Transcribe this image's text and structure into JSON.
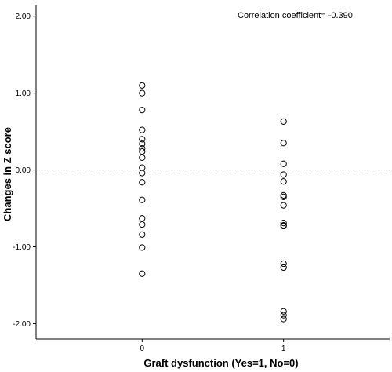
{
  "chart_data": {
    "type": "scatter",
    "xlabel": "Graft dysfunction (Yes=1, No=0)",
    "ylabel": "Changes in Z score",
    "annotation": "Correlation coefficient= -0.390",
    "x_ticks": [
      "0",
      "1"
    ],
    "y_ticks": [
      "2.00",
      "1.00",
      "0.00",
      "-1.00",
      "-2.00"
    ],
    "xlim": [
      -0.75,
      1.75
    ],
    "ylim": [
      -2.2,
      2.15
    ],
    "reference_line_y": 0,
    "marker": "open-circle",
    "series": [
      {
        "points": [
          {
            "x": 0,
            "y": 1.1
          },
          {
            "x": 0,
            "y": 1.0
          },
          {
            "x": 0,
            "y": 0.78
          },
          {
            "x": 0,
            "y": 0.52
          },
          {
            "x": 0,
            "y": 0.4
          },
          {
            "x": 0,
            "y": 0.34
          },
          {
            "x": 0,
            "y": 0.28
          },
          {
            "x": 0,
            "y": 0.24
          },
          {
            "x": 0,
            "y": 0.16
          },
          {
            "x": 0,
            "y": 0.03
          },
          {
            "x": 0,
            "y": -0.04
          },
          {
            "x": 0,
            "y": -0.16
          },
          {
            "x": 0,
            "y": -0.39
          },
          {
            "x": 0,
            "y": -0.63
          },
          {
            "x": 0,
            "y": -0.71
          },
          {
            "x": 0,
            "y": -0.84
          },
          {
            "x": 0,
            "y": -1.01
          },
          {
            "x": 0,
            "y": -1.35
          },
          {
            "x": 1,
            "y": 0.63
          },
          {
            "x": 1,
            "y": 0.35
          },
          {
            "x": 1,
            "y": 0.08
          },
          {
            "x": 1,
            "y": -0.06
          },
          {
            "x": 1,
            "y": -0.15
          },
          {
            "x": 1,
            "y": -0.33
          },
          {
            "x": 1,
            "y": -0.35
          },
          {
            "x": 1,
            "y": -0.46
          },
          {
            "x": 1,
            "y": -0.69
          },
          {
            "x": 1,
            "y": -0.72
          },
          {
            "x": 1,
            "y": -0.73
          },
          {
            "x": 1,
            "y": -1.22
          },
          {
            "x": 1,
            "y": -1.27
          },
          {
            "x": 1,
            "y": -1.84
          },
          {
            "x": 1,
            "y": -1.89
          },
          {
            "x": 1,
            "y": -1.94
          }
        ]
      }
    ]
  },
  "colors": {
    "marker_stroke": "#000000",
    "axis": "#000000",
    "reference_line": "#a0a0a0"
  }
}
